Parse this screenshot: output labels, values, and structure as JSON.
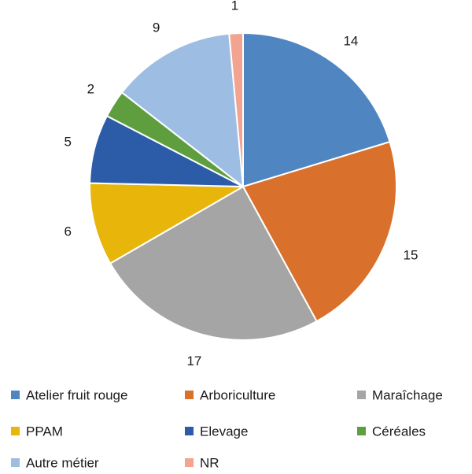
{
  "chart_data": {
    "type": "pie",
    "title": "",
    "legend_position": "bottom",
    "start_angle_deg": 0,
    "direction": "clockwise",
    "slices": [
      {
        "label": "Atelier fruit rouge",
        "value": 14,
        "color": "#4f86c1"
      },
      {
        "label": "Arboriculture",
        "value": 15,
        "color": "#d9712c"
      },
      {
        "label": "Maraîchage",
        "value": 17,
        "color": "#a5a5a5"
      },
      {
        "label": "PPAM",
        "value": 6,
        "color": "#e8b50a"
      },
      {
        "label": "Elevage",
        "value": 5,
        "color": "#2c5ca8"
      },
      {
        "label": "Céréales",
        "value": 2,
        "color": "#5f9e3f"
      },
      {
        "label": "Autre métier",
        "value": 9,
        "color": "#9dbde3"
      },
      {
        "label": "NR",
        "value": 1,
        "color": "#f2a490"
      }
    ]
  }
}
